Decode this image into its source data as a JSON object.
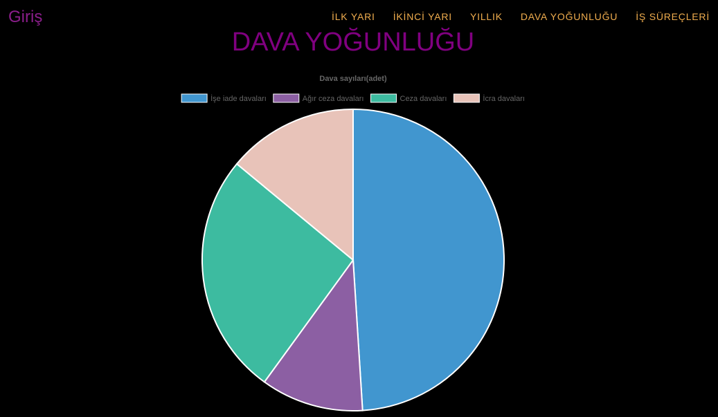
{
  "header": {
    "brand": "Giriş",
    "nav": [
      {
        "id": "ilk-yari",
        "label": "İLK YARI"
      },
      {
        "id": "ikinci-yari",
        "label": "İKİNCİ YARI"
      },
      {
        "id": "yillik",
        "label": "YILLIK"
      },
      {
        "id": "dava-yogunlugu",
        "label": "DAVA YOĞUNLUĞU"
      },
      {
        "id": "is-surecleri",
        "label": "İŞ SÜREÇLERİ"
      }
    ]
  },
  "page": {
    "title": "DAVA YOĞUNLUĞU"
  },
  "colors": {
    "brand": "#8b1e8b",
    "nav": "#f0ad4e",
    "title": "#800080"
  },
  "chart_data": {
    "type": "pie",
    "title": "Dava sayıları(adet)",
    "legend_position": "top",
    "categories": [
      "İşe iade davaları",
      "Ağır ceza davaları",
      "Ceza davaları",
      "İcra davaları"
    ],
    "values": [
      49,
      11,
      26,
      14
    ],
    "colors": [
      "#4196cf",
      "#8c5fa3",
      "#3dbba0",
      "#e8c3b9"
    ]
  }
}
